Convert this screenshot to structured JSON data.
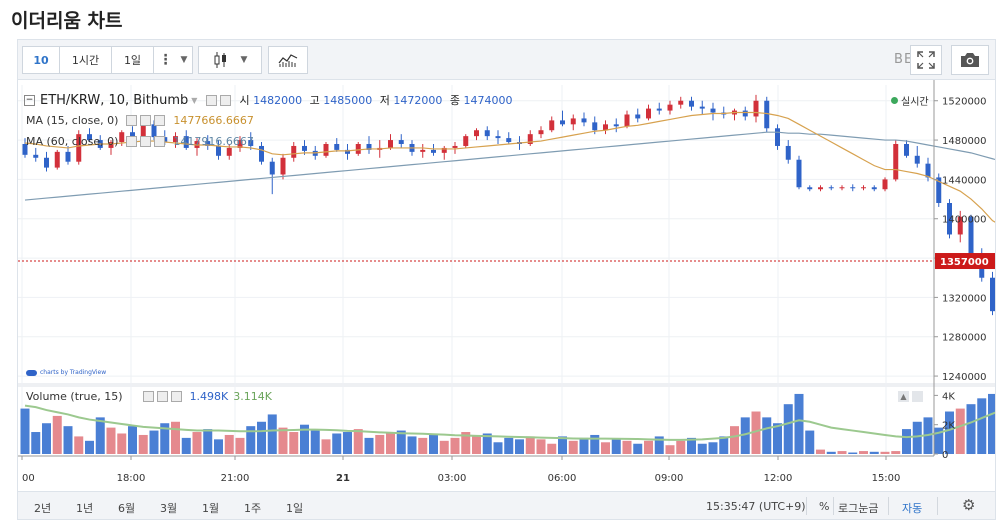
{
  "page": {
    "title": "이더리움 차트"
  },
  "toolbar": {
    "interval_active": "10",
    "interval_1h": "1시간",
    "interval_1d": "1일",
    "more_glyph": "⋮",
    "beta": "BETA"
  },
  "legend": {
    "symbol": "ETH/KRW, 10, Bithumb",
    "open_label": "시",
    "open": "1482000",
    "high_label": "고",
    "high": "1485000",
    "low_label": "저",
    "low": "1472000",
    "close_label": "종",
    "close": "1474000",
    "ma15_label": "MA (15, close, 0)",
    "ma15_value": "1477666.6667",
    "ma60_label": "MA (60, close, 0)",
    "ma60_value": "1417916.6667",
    "live": "실시간",
    "volume_label": "Volume (true, 15)",
    "volume_value": "1.498K",
    "volume_ma_value": "3.114K",
    "watermark": "charts by TradingView"
  },
  "colors": {
    "up": "#d2303a",
    "down": "#2f63c8",
    "ma15": "#d7a24f",
    "ma60": "#7f9cb2",
    "vol_up": "#e5898e",
    "vol_down": "#4a7fd4",
    "vol_ma": "#9cc98f",
    "last_price": "#cc1a1a"
  },
  "chart_data": [
    {
      "type": "candlestick",
      "title": "ETH/KRW, 10, Bithumb",
      "x_labels": [
        "00",
        "18:00",
        "21:00",
        "21",
        "03:00",
        "06:00",
        "09:00",
        "12:00",
        "15:00"
      ],
      "y_ticks": [
        1240000,
        1280000,
        1320000,
        1360000,
        1400000,
        1440000,
        1480000,
        1520000
      ],
      "y_tick_labels": [
        "1240000",
        "1280000",
        "1320000",
        "",
        "1400000",
        "1440000",
        "1480000",
        "1520000"
      ],
      "ylim": [
        1236000,
        1536000
      ],
      "last_price": 1357000,
      "last_price_label": "1357000",
      "candles": [
        [
          1476000,
          1482000,
          1462000,
          1465000
        ],
        [
          1465000,
          1472000,
          1458000,
          1462000
        ],
        [
          1462000,
          1468000,
          1448000,
          1452000
        ],
        [
          1452000,
          1470000,
          1450000,
          1468000
        ],
        [
          1468000,
          1474000,
          1455000,
          1458000
        ],
        [
          1458000,
          1490000,
          1455000,
          1486000
        ],
        [
          1486000,
          1492000,
          1478000,
          1480000
        ],
        [
          1480000,
          1485000,
          1470000,
          1472000
        ],
        [
          1472000,
          1480000,
          1465000,
          1478000
        ],
        [
          1478000,
          1490000,
          1474000,
          1488000
        ],
        [
          1488000,
          1494000,
          1480000,
          1484000
        ],
        [
          1484000,
          1500000,
          1480000,
          1496000
        ],
        [
          1496000,
          1500000,
          1480000,
          1483000
        ],
        [
          1483000,
          1490000,
          1475000,
          1478000
        ],
        [
          1478000,
          1488000,
          1472000,
          1484000
        ],
        [
          1484000,
          1490000,
          1470000,
          1472000
        ],
        [
          1472000,
          1482000,
          1464000,
          1479000
        ],
        [
          1479000,
          1485000,
          1470000,
          1474000
        ],
        [
          1474000,
          1480000,
          1460000,
          1464000
        ],
        [
          1464000,
          1476000,
          1460000,
          1472000
        ],
        [
          1472000,
          1484000,
          1468000,
          1480000
        ],
        [
          1480000,
          1488000,
          1470000,
          1474000
        ],
        [
          1474000,
          1478000,
          1455000,
          1458000
        ],
        [
          1458000,
          1462000,
          1425000,
          1445000
        ],
        [
          1445000,
          1466000,
          1440000,
          1462000
        ],
        [
          1462000,
          1478000,
          1458000,
          1474000
        ],
        [
          1474000,
          1480000,
          1465000,
          1469000
        ],
        [
          1469000,
          1474000,
          1460000,
          1464000
        ],
        [
          1464000,
          1478000,
          1462000,
          1476000
        ],
        [
          1476000,
          1482000,
          1468000,
          1470000
        ],
        [
          1470000,
          1476000,
          1460000,
          1466000
        ],
        [
          1466000,
          1478000,
          1464000,
          1476000
        ],
        [
          1476000,
          1484000,
          1466000,
          1470000
        ],
        [
          1470000,
          1480000,
          1462000,
          1472000
        ],
        [
          1472000,
          1486000,
          1470000,
          1480000
        ],
        [
          1480000,
          1486000,
          1472000,
          1476000
        ],
        [
          1476000,
          1480000,
          1464000,
          1468000
        ],
        [
          1468000,
          1476000,
          1462000,
          1470000
        ],
        [
          1470000,
          1476000,
          1464000,
          1467000
        ],
        [
          1467000,
          1474000,
          1460000,
          1472000
        ],
        [
          1472000,
          1478000,
          1466000,
          1474000
        ],
        [
          1474000,
          1486000,
          1472000,
          1484000
        ],
        [
          1484000,
          1492000,
          1480000,
          1490000
        ],
        [
          1490000,
          1494000,
          1480000,
          1484000
        ],
        [
          1484000,
          1490000,
          1476000,
          1482000
        ],
        [
          1482000,
          1488000,
          1476000,
          1478000
        ],
        [
          1478000,
          1484000,
          1470000,
          1476000
        ],
        [
          1476000,
          1490000,
          1474000,
          1486000
        ],
        [
          1486000,
          1494000,
          1482000,
          1490000
        ],
        [
          1490000,
          1504000,
          1488000,
          1500000
        ],
        [
          1500000,
          1510000,
          1494000,
          1496000
        ],
        [
          1496000,
          1506000,
          1490000,
          1502000
        ],
        [
          1502000,
          1508000,
          1494000,
          1498000
        ],
        [
          1498000,
          1504000,
          1486000,
          1490000
        ],
        [
          1490000,
          1500000,
          1486000,
          1496000
        ],
        [
          1496000,
          1502000,
          1488000,
          1494000
        ],
        [
          1494000,
          1510000,
          1492000,
          1506000
        ],
        [
          1506000,
          1512000,
          1498000,
          1502000
        ],
        [
          1502000,
          1516000,
          1500000,
          1512000
        ],
        [
          1512000,
          1518000,
          1506000,
          1510000
        ],
        [
          1510000,
          1520000,
          1506000,
          1516000
        ],
        [
          1516000,
          1524000,
          1512000,
          1520000
        ],
        [
          1520000,
          1524000,
          1510000,
          1514000
        ],
        [
          1514000,
          1520000,
          1506000,
          1512000
        ],
        [
          1512000,
          1518000,
          1500000,
          1508000
        ],
        [
          1508000,
          1514000,
          1502000,
          1506000
        ],
        [
          1506000,
          1512000,
          1500000,
          1510000
        ],
        [
          1510000,
          1514000,
          1500000,
          1504000
        ],
        [
          1504000,
          1526000,
          1498000,
          1520000
        ],
        [
          1520000,
          1524000,
          1488000,
          1492000
        ],
        [
          1492000,
          1496000,
          1470000,
          1474000
        ],
        [
          1474000,
          1480000,
          1456000,
          1460000
        ],
        [
          1460000,
          1464000,
          1430000,
          1432000
        ],
        [
          1432000,
          1434000,
          1428000,
          1430000
        ],
        [
          1430000,
          1434000,
          1428000,
          1432000
        ],
        [
          1432000,
          1434000,
          1429000,
          1431000
        ],
        [
          1431000,
          1434000,
          1429000,
          1432000
        ],
        [
          1432000,
          1435000,
          1428000,
          1431000
        ],
        [
          1431000,
          1434000,
          1429000,
          1432000
        ],
        [
          1432000,
          1434000,
          1428000,
          1430000
        ],
        [
          1430000,
          1442000,
          1428000,
          1440000
        ],
        [
          1440000,
          1480000,
          1438000,
          1476000
        ],
        [
          1476000,
          1480000,
          1462000,
          1464000
        ],
        [
          1464000,
          1474000,
          1452000,
          1456000
        ],
        [
          1456000,
          1462000,
          1438000,
          1442000
        ],
        [
          1442000,
          1446000,
          1412000,
          1416000
        ],
        [
          1416000,
          1420000,
          1380000,
          1384000
        ],
        [
          1384000,
          1408000,
          1376000,
          1402000
        ],
        [
          1402000,
          1404000,
          1360000,
          1364000
        ],
        [
          1364000,
          1370000,
          1336000,
          1340000
        ],
        [
          1340000,
          1346000,
          1302000,
          1306000
        ],
        [
          1306000,
          1310000,
          1252000,
          1262000
        ],
        [
          1262000,
          1348000,
          1258000,
          1344000
        ],
        [
          1344000,
          1366000,
          1320000,
          1360000
        ],
        [
          1360000,
          1364000,
          1326000,
          1348000
        ],
        [
          1348000,
          1360000,
          1330000,
          1352000
        ],
        [
          1352000,
          1360000,
          1340000,
          1356000
        ],
        [
          1356000,
          1362000,
          1338000,
          1354000
        ],
        [
          1354000,
          1366000,
          1350000,
          1357000
        ]
      ],
      "ma15": [
        1477000,
        1476000,
        1474000,
        1473000,
        1472000,
        1474000,
        1475000,
        1476000,
        1476000,
        1477000,
        1478000,
        1479000,
        1479000,
        1478000,
        1477000,
        1476000,
        1475000,
        1475000,
        1474000,
        1473000,
        1473000,
        1472000,
        1470000,
        1466000,
        1465000,
        1466000,
        1467000,
        1467000,
        1468000,
        1469000,
        1469000,
        1470000,
        1471000,
        1471000,
        1472000,
        1472000,
        1472000,
        1472000,
        1471000,
        1471000,
        1471000,
        1472000,
        1473000,
        1474000,
        1475000,
        1476000,
        1477000,
        1478000,
        1479000,
        1481000,
        1483000,
        1485000,
        1487000,
        1489000,
        1490000,
        1492000,
        1494000,
        1495000,
        1497000,
        1499000,
        1501000,
        1503000,
        1505000,
        1506000,
        1507000,
        1507000,
        1508000,
        1508000,
        1508000,
        1507000,
        1505000,
        1502000,
        1496000,
        1490000,
        1484000,
        1478000,
        1472000,
        1466000,
        1460000,
        1454000,
        1450000,
        1450000,
        1448000,
        1446000,
        1443000,
        1438000,
        1433000,
        1428000,
        1420000,
        1410000,
        1398000,
        1392000,
        1388000,
        1382000,
        1374000,
        1368000,
        1362000,
        1358000
      ],
      "ma60": [
        1419000,
        1420000,
        1421000,
        1422000,
        1423000,
        1424000,
        1425000,
        1426000,
        1427000,
        1428000,
        1429000,
        1430000,
        1431000,
        1432000,
        1433000,
        1434000,
        1435000,
        1436000,
        1437000,
        1438000,
        1439000,
        1440000,
        1441000,
        1442000,
        1443000,
        1444000,
        1445000,
        1446000,
        1447000,
        1448000,
        1449000,
        1450000,
        1451000,
        1452000,
        1453000,
        1454000,
        1455000,
        1456000,
        1457000,
        1458000,
        1459000,
        1460000,
        1461000,
        1462000,
        1463000,
        1464000,
        1465000,
        1466000,
        1467000,
        1468000,
        1469000,
        1470000,
        1471000,
        1472000,
        1473000,
        1474000,
        1475000,
        1476000,
        1477000,
        1478000,
        1479000,
        1480000,
        1481000,
        1482000,
        1483000,
        1484000,
        1485000,
        1486000,
        1487000,
        1488000,
        1488000,
        1487000,
        1487000,
        1486000,
        1486000,
        1485000,
        1484000,
        1483000,
        1482000,
        1481000,
        1480000,
        1480000,
        1479000,
        1477000,
        1475000,
        1473000,
        1471000,
        1469000,
        1467000,
        1464000,
        1461000,
        1458000,
        1454000,
        1451000,
        1448000,
        1445000,
        1442000,
        1440000
      ]
    },
    {
      "type": "bar",
      "title": "Volume (true, 15)",
      "y_tick_labels": [
        "4K",
        "2K",
        "0"
      ],
      "ylim": [
        0,
        4300
      ],
      "values": [
        3100,
        1500,
        2100,
        2600,
        1900,
        1200,
        900,
        2500,
        1800,
        1400,
        1900,
        1300,
        1600,
        2100,
        2200,
        1100,
        1500,
        1700,
        1000,
        1300,
        1100,
        1900,
        2200,
        2700,
        1800,
        1500,
        2000,
        1600,
        1000,
        1400,
        1500,
        1700,
        1100,
        1300,
        1500,
        1600,
        1200,
        1100,
        1300,
        900,
        1100,
        1500,
        1200,
        1400,
        800,
        1100,
        1000,
        1200,
        1000,
        700,
        1200,
        900,
        1100,
        1300,
        800,
        1000,
        900,
        700,
        900,
        1200,
        600,
        900,
        1100,
        700,
        800,
        1200,
        1900,
        2500,
        2900,
        2500,
        2100,
        3400,
        4100,
        1600,
        300,
        150,
        200,
        100,
        200,
        150,
        150,
        200,
        1700,
        2200,
        2500,
        1800,
        2900,
        3100,
        3400,
        3800,
        4100,
        4300,
        4000,
        2800,
        2300,
        1700,
        1400,
        1200
      ],
      "ma": [
        3300,
        3200,
        3000,
        2850,
        2700,
        2500,
        2350,
        2250,
        2150,
        2050,
        1950,
        1850,
        1800,
        1750,
        1700,
        1650,
        1600,
        1600,
        1600,
        1580,
        1550,
        1550,
        1560,
        1600,
        1620,
        1640,
        1660,
        1660,
        1650,
        1620,
        1580,
        1560,
        1520,
        1480,
        1450,
        1420,
        1400,
        1380,
        1350,
        1320,
        1280,
        1260,
        1240,
        1220,
        1200,
        1180,
        1160,
        1140,
        1120,
        1100,
        1080,
        1060,
        1050,
        1050,
        1050,
        1040,
        1030,
        1020,
        1000,
        980,
        960,
        960,
        980,
        1000,
        1050,
        1100,
        1200,
        1350,
        1550,
        1750,
        1900,
        2100,
        2300,
        2200,
        2000,
        1800,
        1700,
        1600,
        1500,
        1400,
        1300,
        1200,
        1150,
        1200,
        1300,
        1450,
        1650,
        1900,
        2150,
        2450,
        2750,
        3050,
        3200,
        3200,
        3100,
        2950,
        2800,
        2650
      ]
    }
  ],
  "bottom": {
    "ranges": [
      "2년",
      "1년",
      "6월",
      "3월",
      "1월",
      "1주",
      "1일"
    ],
    "time": "15:35:47 (UTC+9)",
    "percent": "%",
    "log": "로그눈금",
    "auto": "자동"
  }
}
